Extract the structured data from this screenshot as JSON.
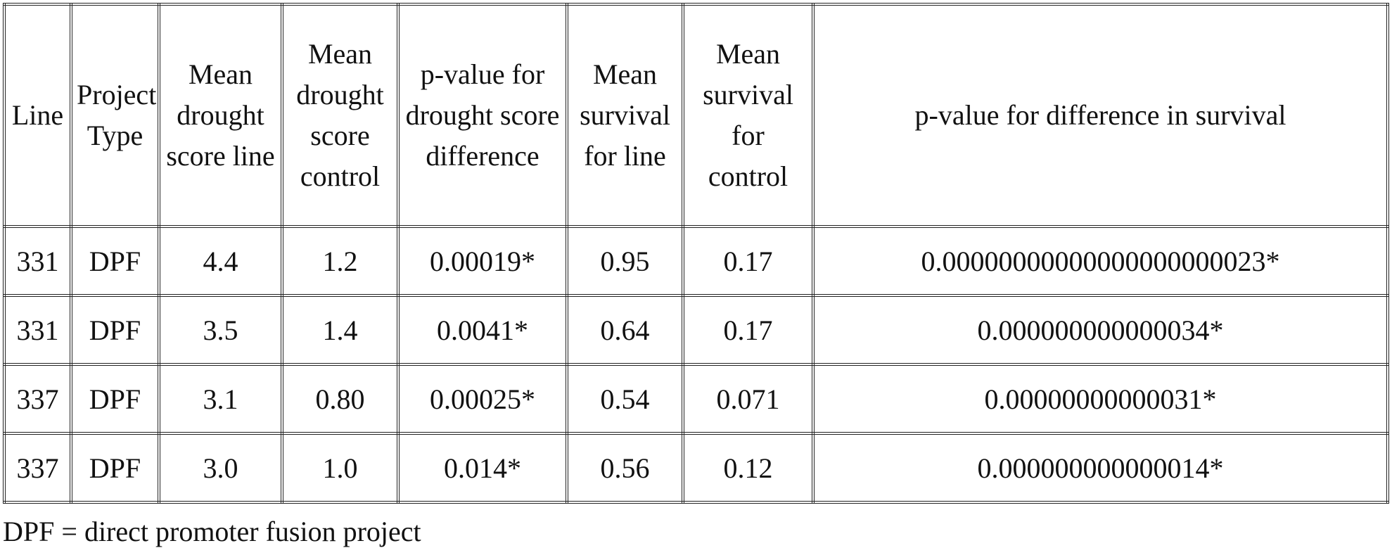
{
  "table": {
    "headers": [
      "Line",
      "Project Type",
      "Mean drought score line",
      "Mean drought score control",
      "p-value for drought score difference",
      "Mean survival for line",
      "Mean survival for control",
      "p-value for difference in survival"
    ],
    "rows": [
      [
        "331",
        "DPF",
        "4.4",
        "1.2",
        "0.00019*",
        "0.95",
        "0.17",
        "0.00000000000000000000023*"
      ],
      [
        "331",
        "DPF",
        "3.5",
        "1.4",
        "0.0041*",
        "0.64",
        "0.17",
        "0.000000000000034*"
      ],
      [
        "337",
        "DPF",
        "3.1",
        "0.80",
        "0.00025*",
        "0.54",
        "0.071",
        "0.00000000000031*"
      ],
      [
        "337",
        "DPF",
        "3.0",
        "1.0",
        "0.014*",
        "0.56",
        "0.12",
        "0.000000000000014*"
      ]
    ]
  },
  "footnote": "DPF = direct promoter fusion project"
}
